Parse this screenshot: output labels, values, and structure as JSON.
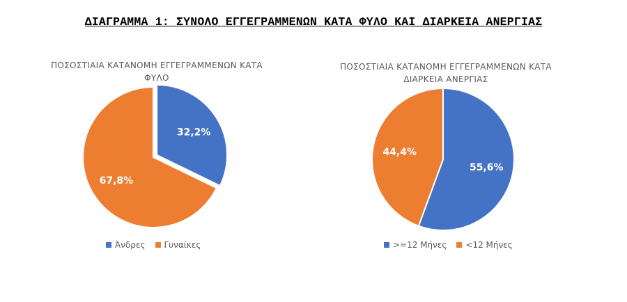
{
  "page": {
    "title": "ΔΙΑΓΡΑΜΜΑ 1: ΣΥΝΟΛΟ ΕΓΓΕΓΡΑΜΜΕΝΩΝ ΚΑΤΑ ΦΥΛΟ ΚΑΙ ΔΙΑΡΚΕΙΑ ΑΝΕΡΓΙΑΣ"
  },
  "chart_data": [
    {
      "type": "pie",
      "title_lines": [
        "ΠΟΣΟΣΤΙΑΙΑ ΚΑΤΑΝΟΜΗ ΕΓΓΕΓΡΑΜΜΕΝΩΝ ΚΑΤΑ",
        "ΦΥΛΟ"
      ],
      "categories": [
        "Άνδρες",
        "Γυναίκες"
      ],
      "values": [
        32.2,
        67.8
      ],
      "labels": [
        "32,2%",
        "67,8%"
      ],
      "colors": [
        "#4472C4",
        "#ED7D31"
      ],
      "start_angle_deg": 0,
      "exploded_slice": 0,
      "legend": "bottom"
    },
    {
      "type": "pie",
      "title_lines": [
        "ΠΟΣΟΣΤΙΑΙΑ ΚΑΤΑΝΟΜΗ ΕΓΓΕΓΡΑΜΜΕΝΩΝ ΚΑΤΑ",
        "ΔΙΑΡΚΕΙΑ ΑΝΕΡΓΙΑΣ"
      ],
      "categories": [
        ">=12 Μήνες",
        "<12 Μήνες"
      ],
      "values": [
        55.6,
        44.4
      ],
      "labels": [
        "55,6%",
        "44,4%"
      ],
      "colors": [
        "#4472C4",
        "#ED7D31"
      ],
      "start_angle_deg": 0,
      "exploded_slice": -1,
      "legend": "bottom"
    }
  ]
}
